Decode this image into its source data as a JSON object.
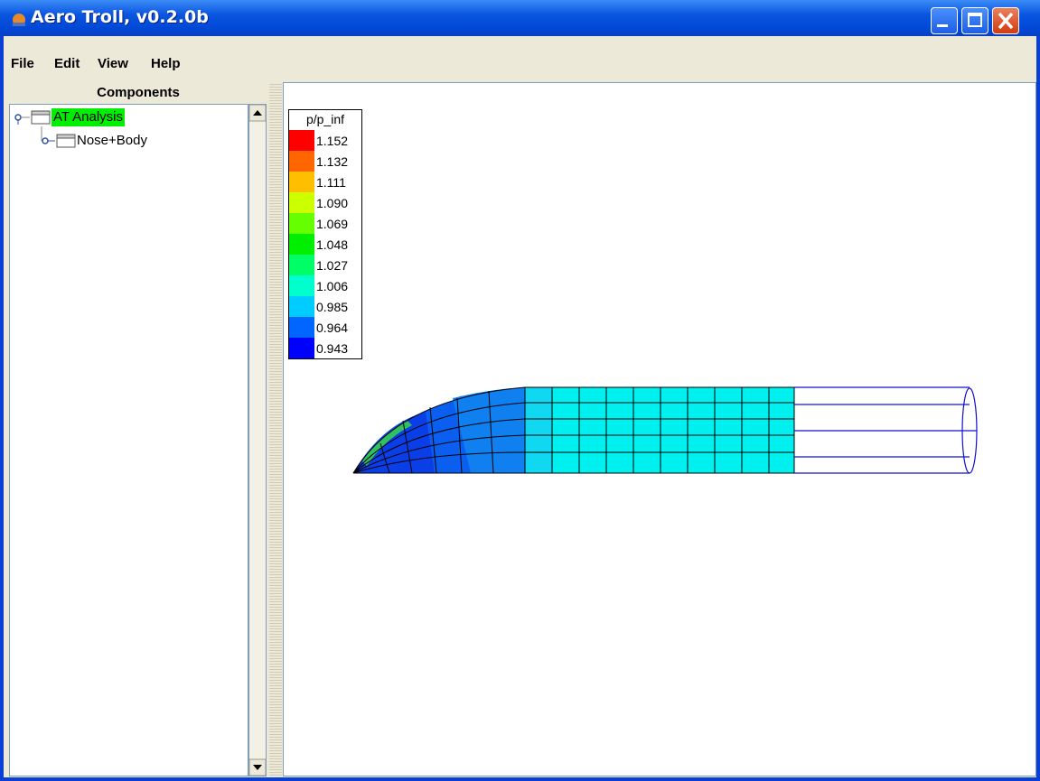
{
  "window": {
    "title": "Aero Troll, v0.2.0b"
  },
  "menu": [
    "File",
    "Edit",
    "View",
    "Help"
  ],
  "components_panel": {
    "title": "Components",
    "tree": [
      {
        "label": "AT Analysis"
      },
      {
        "label": "Nose+Body"
      }
    ]
  },
  "legend": {
    "title": "p/p_inf",
    "entries": [
      {
        "label": "1.152",
        "color": "#ff0000"
      },
      {
        "label": "1.132",
        "color": "#ff6600"
      },
      {
        "label": "1.111",
        "color": "#ffbf00"
      },
      {
        "label": "1.090",
        "color": "#ccff00"
      },
      {
        "label": "1.069",
        "color": "#66ff00"
      },
      {
        "label": "1.048",
        "color": "#00ee00"
      },
      {
        "label": "1.027",
        "color": "#00ff66"
      },
      {
        "label": "1.006",
        "color": "#00ffcc"
      },
      {
        "label": "0.985",
        "color": "#00ccff"
      },
      {
        "label": "0.964",
        "color": "#0066ff"
      },
      {
        "label": "0.943",
        "color": "#0000ff"
      }
    ]
  }
}
